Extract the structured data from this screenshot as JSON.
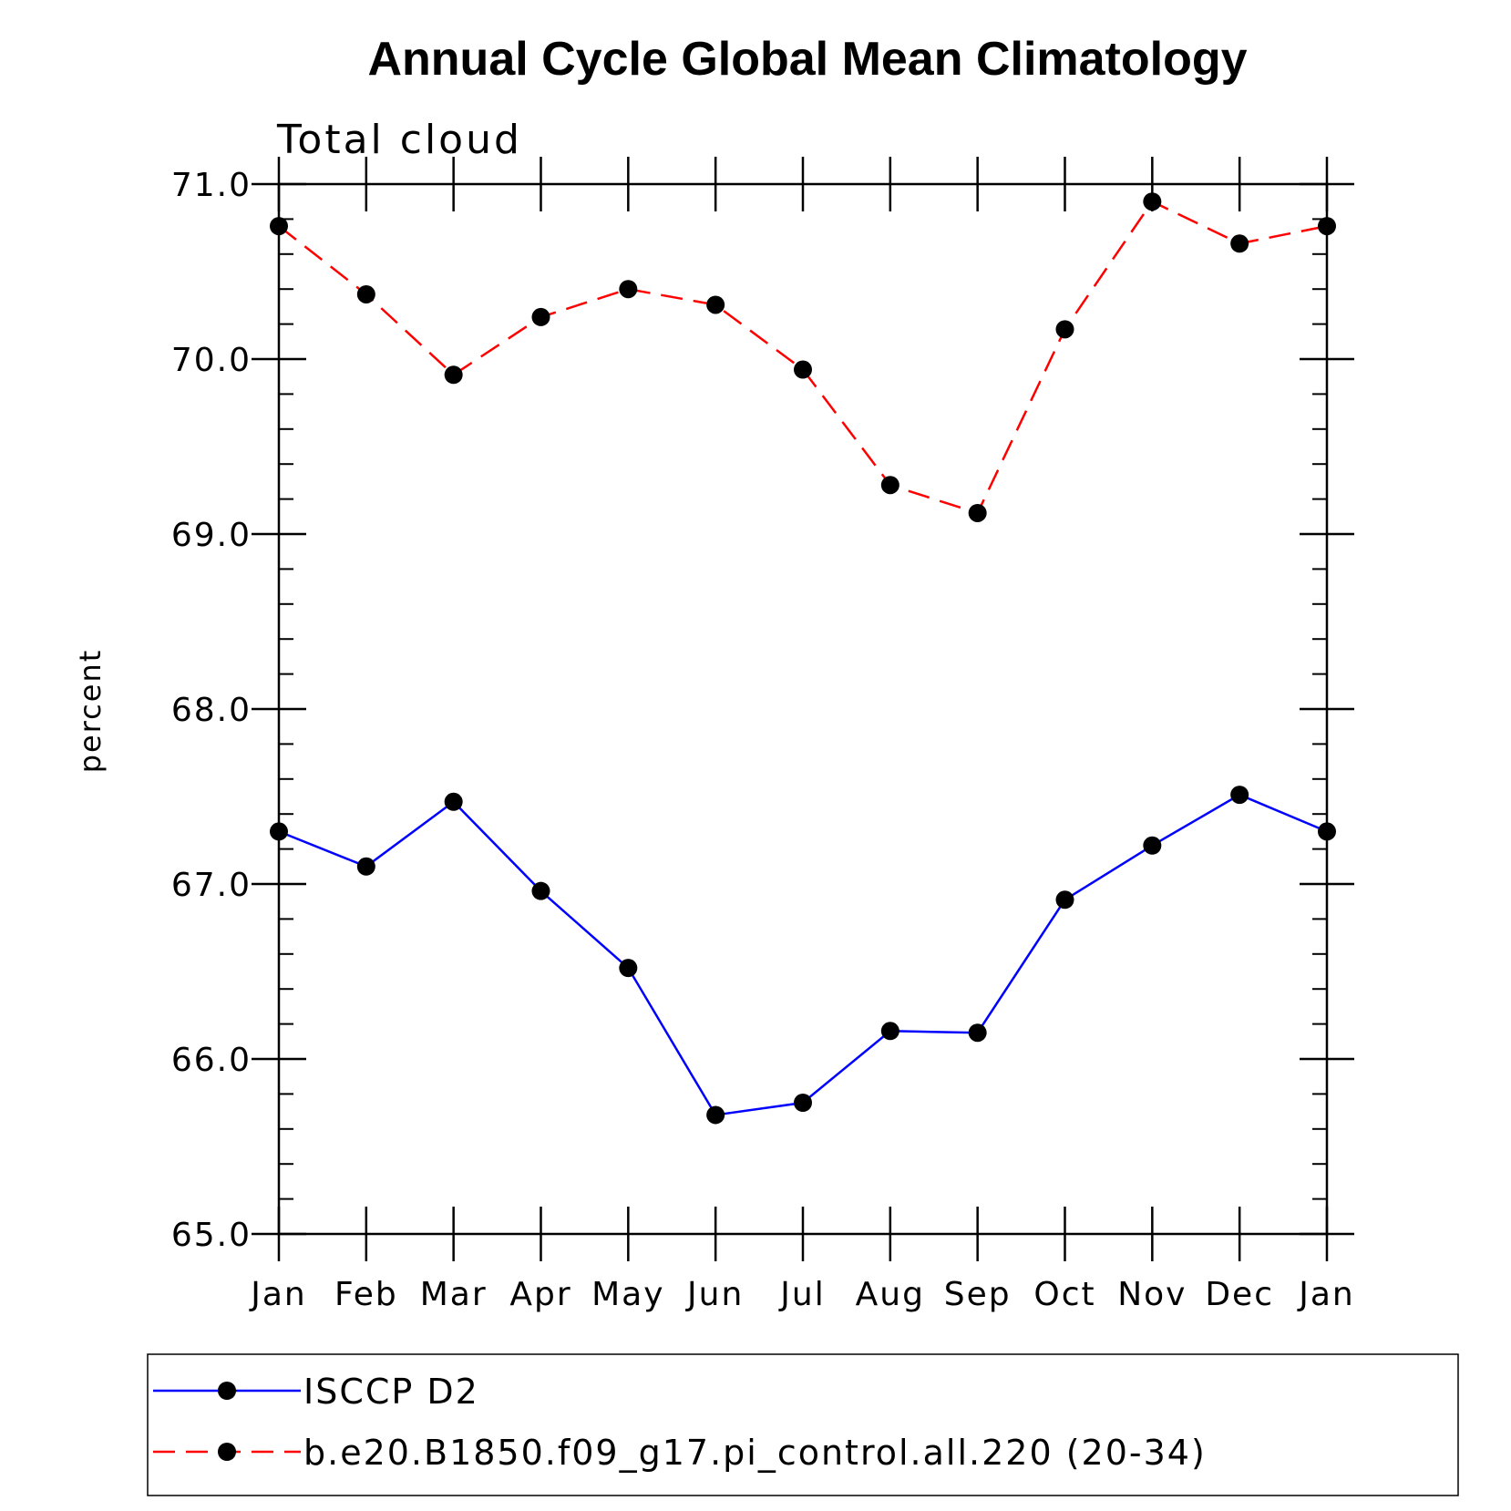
{
  "chart_data": {
    "type": "line",
    "title": "Annual Cycle Global Mean Climatology",
    "subtitle": "Total cloud",
    "xlabel": "",
    "ylabel": "percent",
    "categories": [
      "Jan",
      "Feb",
      "Mar",
      "Apr",
      "May",
      "Jun",
      "Jul",
      "Aug",
      "Sep",
      "Oct",
      "Nov",
      "Dec",
      "Jan"
    ],
    "ylim": [
      65.0,
      71.0
    ],
    "yticks": [
      "65.0",
      "66.0",
      "67.0",
      "68.0",
      "69.0",
      "70.0",
      "71.0"
    ],
    "legend_position": "bottom",
    "grid": false,
    "series": [
      {
        "name": "ISCCP D2",
        "color": "#0000ff",
        "line_style": "solid",
        "marker": "filled-circle",
        "values": [
          67.3,
          67.1,
          67.47,
          66.96,
          66.52,
          65.68,
          65.75,
          66.16,
          66.15,
          66.91,
          67.22,
          67.51,
          67.3
        ]
      },
      {
        "name": "b.e20.B1850.f09_g17.pi_control.all.220 (20-34)",
        "color": "#ff0000",
        "line_style": "dashed",
        "marker": "filled-circle",
        "values": [
          70.76,
          70.37,
          69.91,
          70.24,
          70.4,
          70.31,
          69.94,
          69.28,
          69.12,
          70.17,
          70.9,
          70.66,
          70.76
        ]
      }
    ]
  }
}
